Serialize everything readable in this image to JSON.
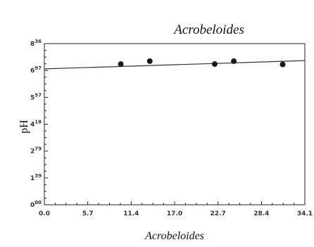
{
  "chart_data": {
    "type": "scatter",
    "title": "Acrobeloides",
    "xlabel": "Acrobeloides",
    "ylabel": "pH",
    "xlim": [
      0.0,
      34.1
    ],
    "ylim": [
      0.0,
      8.36
    ],
    "x_ticks": [
      "0.0",
      "5.7",
      "11.4",
      "17.0",
      "22.7",
      "28.4",
      "34.1"
    ],
    "y_ticks": [
      {
        "main": "0",
        "sup": "00"
      },
      {
        "main": "1",
        "sup": "39"
      },
      {
        "main": "2",
        "sup": "79"
      },
      {
        "main": "4",
        "sup": "18"
      },
      {
        "main": "5",
        "sup": "57"
      },
      {
        "main": "6",
        "sup": "97"
      },
      {
        "main": "8",
        "sup": "36"
      }
    ],
    "points": [
      {
        "x": 10.0,
        "y": 7.3
      },
      {
        "x": 13.8,
        "y": 7.45
      },
      {
        "x": 22.3,
        "y": 7.3
      },
      {
        "x": 24.8,
        "y": 7.45
      },
      {
        "x": 31.2,
        "y": 7.28
      }
    ],
    "trendline": [
      {
        "x": 0.0,
        "y": 7.05
      },
      {
        "x": 34.1,
        "y": 7.48
      }
    ],
    "grid": false
  }
}
